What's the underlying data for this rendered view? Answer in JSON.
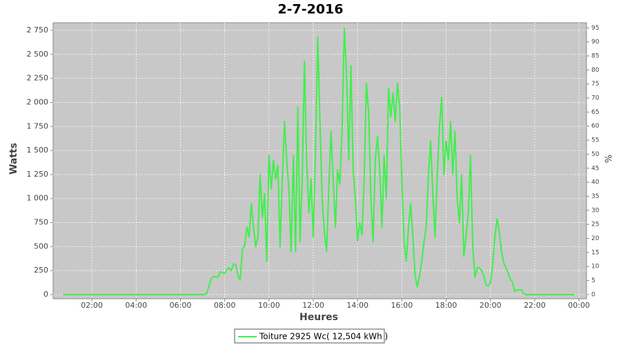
{
  "chart_data": {
    "type": "line",
    "title": "2-7-2016",
    "x_label": "Heures",
    "y_label": "Watts",
    "y2_label": "%",
    "x": [
      0.7,
      6.9,
      7,
      7.1,
      7.2,
      7.3,
      7.4,
      7.5,
      7.6,
      7.7,
      7.8,
      7.9,
      8,
      8.1,
      8.2,
      8.3,
      8.4,
      8.5,
      8.6,
      8.7,
      8.8,
      8.9,
      9,
      9.1,
      9.2,
      9.3,
      9.4,
      9.5,
      9.6,
      9.7,
      9.8,
      9.9,
      10,
      10.1,
      10.2,
      10.3,
      10.4,
      10.5,
      10.6,
      10.7,
      10.8,
      10.9,
      11,
      11.1,
      11.2,
      11.3,
      11.4,
      11.5,
      11.6,
      11.7,
      11.8,
      11.9,
      12,
      12.1,
      12.2,
      12.3,
      12.4,
      12.5,
      12.6,
      12.7,
      12.8,
      12.9,
      13,
      13.1,
      13.2,
      13.3,
      13.4,
      13.5,
      13.6,
      13.7,
      13.8,
      13.9,
      14,
      14.1,
      14.2,
      14.3,
      14.4,
      14.5,
      14.6,
      14.7,
      14.8,
      14.9,
      15,
      15.1,
      15.2,
      15.3,
      15.4,
      15.5,
      15.6,
      15.7,
      15.8,
      15.9,
      16,
      16.1,
      16.2,
      16.3,
      16.4,
      16.5,
      16.6,
      16.7,
      16.8,
      16.9,
      17,
      17.1,
      17.2,
      17.3,
      17.4,
      17.5,
      17.6,
      17.7,
      17.8,
      17.9,
      18,
      18.1,
      18.2,
      18.3,
      18.4,
      18.5,
      18.6,
      18.7,
      18.8,
      18.9,
      19,
      19.1,
      19.2,
      19.3,
      19.4,
      19.5,
      19.6,
      19.7,
      19.8,
      19.9,
      20,
      20.1,
      20.2,
      20.3,
      20.4,
      20.5,
      20.6,
      20.7,
      20.8,
      20.9,
      21,
      21.1,
      21.2,
      21.3,
      21.4,
      21.5,
      21.6,
      23.8
    ],
    "series": [
      {
        "name": "Toiture 2925 Wc( 12,504 kWh )",
        "color": "#3ef04a",
        "values": [
          0,
          0,
          0,
          0,
          20,
          100,
          170,
          190,
          185,
          180,
          240,
          230,
          220,
          260,
          280,
          250,
          320,
          310,
          200,
          150,
          480,
          510,
          700,
          600,
          950,
          700,
          500,
          600,
          1250,
          800,
          1050,
          350,
          1450,
          1100,
          1400,
          1200,
          1350,
          500,
          1200,
          1800,
          1400,
          1100,
          450,
          1450,
          450,
          1950,
          550,
          1200,
          2430,
          1400,
          850,
          1200,
          600,
          1500,
          2680,
          1800,
          1000,
          650,
          450,
          1100,
          1700,
          1200,
          700,
          1300,
          1150,
          1700,
          2770,
          2300,
          1400,
          2380,
          1300,
          1000,
          560,
          750,
          620,
          1200,
          2200,
          1900,
          1000,
          550,
          1400,
          1650,
          1300,
          700,
          1450,
          1000,
          2150,
          1850,
          2100,
          1800,
          2200,
          1950,
          1200,
          550,
          350,
          700,
          950,
          600,
          200,
          80,
          200,
          350,
          550,
          700,
          1250,
          1600,
          1050,
          600,
          1250,
          1750,
          2050,
          1250,
          1600,
          1400,
          1800,
          1250,
          1700,
          1000,
          750,
          1250,
          400,
          600,
          850,
          1450,
          500,
          180,
          280,
          280,
          250,
          200,
          100,
          90,
          120,
          300,
          600,
          790,
          650,
          450,
          330,
          280,
          230,
          160,
          130,
          30,
          50,
          50,
          50,
          10,
          0,
          0
        ]
      }
    ],
    "xlim": [
      0.25,
      24.34
    ],
    "xticks": [
      {
        "value": 2,
        "label": "02:00"
      },
      {
        "value": 4,
        "label": "04:00"
      },
      {
        "value": 6,
        "label": "06:00"
      },
      {
        "value": 8,
        "label": "08:00"
      },
      {
        "value": 10,
        "label": "10:00"
      },
      {
        "value": 12,
        "label": "12:00"
      },
      {
        "value": 14,
        "label": "14:00"
      },
      {
        "value": 16,
        "label": "16:00"
      },
      {
        "value": 18,
        "label": "18:00"
      },
      {
        "value": 20,
        "label": "20:00"
      },
      {
        "value": 22,
        "label": "22:00"
      },
      {
        "value": 24,
        "label": "00:00"
      }
    ],
    "ylim": [
      -43,
      2829
    ],
    "yticks": [
      0,
      250,
      500,
      750,
      {
        "value": 1000,
        "label": "1 000"
      },
      {
        "value": 1250,
        "label": "1 250"
      },
      {
        "value": 1500,
        "label": "1 500"
      },
      {
        "value": 1750,
        "label": "1 750"
      },
      {
        "value": 2000,
        "label": "2 000"
      },
      {
        "value": 2250,
        "label": "2 250"
      },
      {
        "value": 2500,
        "label": "2 500"
      },
      {
        "value": 2750,
        "label": "2 750"
      }
    ],
    "y2lim": [
      -1.5,
      96.8
    ],
    "y2ticks": [
      0,
      5,
      10,
      15,
      20,
      25,
      30,
      35,
      40,
      45,
      50,
      55,
      60,
      65,
      70,
      75,
      80,
      85,
      90,
      95
    ],
    "grid": true
  }
}
